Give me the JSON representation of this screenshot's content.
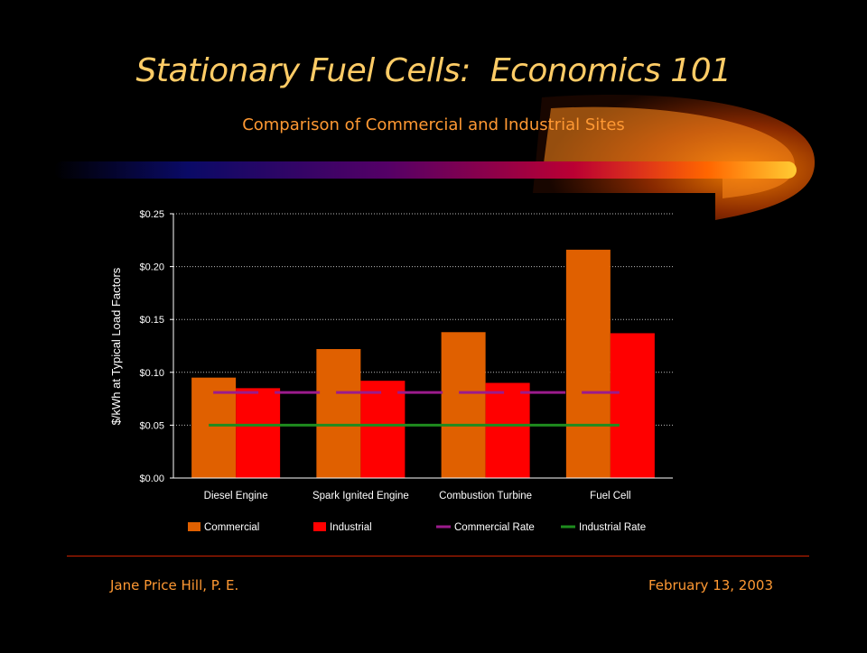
{
  "slide": {
    "title": "Stationary Fuel Cells:  Economics 101",
    "subtitle": "Comparison of Commercial and Industrial Sites",
    "footer_left": "Jane Price Hill, P. E.",
    "footer_right": "February 13, 2003"
  },
  "colors": {
    "background": "#000000",
    "title": "#ffcc66",
    "subtitle": "#ff9933",
    "commercial": "#e06000",
    "industrial": "#ff0000",
    "commercial_rate": "#9b1b8c",
    "industrial_rate": "#1e8c1e"
  },
  "chart_data": {
    "type": "bar",
    "title": "",
    "xlabel": "",
    "ylabel": "$/kWh at Typical Load Factors",
    "categories": [
      "Diesel Engine",
      "Spark Ignited Engine",
      "Combustion Turbine",
      "Fuel Cell"
    ],
    "ylim": [
      0,
      0.25
    ],
    "yticks": [
      0,
      0.05,
      0.1,
      0.15,
      0.2,
      0.25
    ],
    "ytick_labels": [
      "$0.00",
      "$0.05",
      "$0.10",
      "$0.15",
      "$0.20",
      "$0.25"
    ],
    "grid": "horizontal dotted",
    "legend_position": "bottom",
    "series": [
      {
        "name": "Commercial",
        "kind": "bar",
        "color": "#e06000",
        "values": [
          0.095,
          0.122,
          0.138,
          0.216
        ]
      },
      {
        "name": "Industrial",
        "kind": "bar",
        "color": "#ff0000",
        "values": [
          0.085,
          0.092,
          0.09,
          0.137
        ]
      },
      {
        "name": "Commercial Rate",
        "kind": "line",
        "style": "dashed",
        "color": "#9b1b8c",
        "value": 0.081
      },
      {
        "name": "Industrial Rate",
        "kind": "line",
        "style": "solid",
        "color": "#1e8c1e",
        "value": 0.05
      }
    ]
  }
}
